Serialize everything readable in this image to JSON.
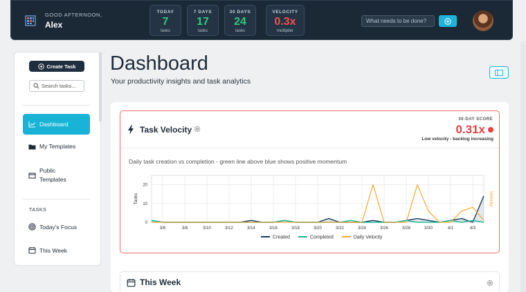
{
  "header": {
    "greeting": "GOOD AFTERNOON,",
    "user_name": "Alex",
    "stats": [
      {
        "label": "TODAY",
        "value": "7",
        "sub": "tasks",
        "color": "#2ec97c"
      },
      {
        "label": "7 DAYS",
        "value": "17",
        "sub": "tasks",
        "color": "#2ec97c"
      },
      {
        "label": "30 DAYS",
        "value": "24",
        "sub": "tasks",
        "color": "#2ec97c"
      },
      {
        "label": "VELOCITY",
        "value": "0.3x",
        "sub": "multiplier",
        "color": "#f05050"
      }
    ],
    "task_input_placeholder": "What needs to be done?",
    "add_icon": "plus-circle-icon"
  },
  "sidebar": {
    "create_label": "Create Task",
    "search_placeholder": "Search tasks...",
    "nav": [
      {
        "label": "Dashboard",
        "icon": "chart-line-icon",
        "active": true
      },
      {
        "label": "My Templates",
        "icon": "folder-icon"
      },
      {
        "label": "Public Templates",
        "icon": "box-icon"
      }
    ],
    "section": "TASKS",
    "tasks_nav": [
      {
        "label": "Today's Focus",
        "icon": "target-icon"
      },
      {
        "label": "This Week",
        "icon": "calendar-icon"
      }
    ]
  },
  "main": {
    "title": "Dashboard",
    "subtitle": "Your productivity insights and task analytics",
    "velocity": {
      "title": "Task Velocity",
      "score_label": "30-DAY SCORE",
      "score_value": "0.31x",
      "score_note": "Low velocity - backlog increasing",
      "description": "Daily task creation vs completion - green line above blue shows positive momentum"
    },
    "week": {
      "title": "This Week"
    }
  },
  "chart_data": {
    "type": "line",
    "x": [
      "3/5",
      "3/6",
      "3/7",
      "3/8",
      "3/9",
      "3/10",
      "3/11",
      "3/12",
      "3/13",
      "3/14",
      "3/15",
      "3/16",
      "3/17",
      "3/18",
      "3/19",
      "3/20",
      "3/21",
      "3/22",
      "3/23",
      "3/24",
      "3/25",
      "3/26",
      "3/27",
      "3/28",
      "3/29",
      "3/30",
      "3/31",
      "4/1",
      "4/2",
      "4/3",
      "4/4"
    ],
    "x_tick_labels": [
      "3/6",
      "3/8",
      "3/10",
      "3/12",
      "3/14",
      "3/16",
      "3/18",
      "3/20",
      "3/22",
      "3/24",
      "3/26",
      "3/28",
      "3/30",
      "4/1",
      "4/3"
    ],
    "ylabel": "Tasks",
    "y2label": "Velocity",
    "ylim": [
      0,
      25
    ],
    "y_ticks": [
      0,
      10,
      20
    ],
    "series": [
      {
        "name": "Created",
        "color": "#1e3a5f",
        "values": [
          1,
          0,
          0,
          0,
          0,
          0,
          0,
          0,
          0,
          1,
          0,
          0,
          1,
          0,
          0,
          0,
          2,
          0,
          0,
          0,
          1,
          0,
          0,
          1,
          2,
          1,
          0,
          1,
          2,
          0,
          14
        ]
      },
      {
        "name": "Completed",
        "color": "#17b890",
        "values": [
          1,
          0,
          0,
          0,
          0,
          0,
          0,
          0,
          0,
          0,
          0,
          0,
          1,
          0,
          0,
          0,
          0,
          0,
          1,
          0,
          0,
          0,
          0,
          1,
          0,
          0,
          0,
          1,
          0,
          1,
          0
        ]
      },
      {
        "name": "Daily Velocity",
        "color": "#f0a830",
        "values": [
          0,
          0,
          0,
          0,
          0,
          0,
          0,
          0,
          0,
          0,
          0,
          0,
          0,
          0,
          0,
          0,
          0,
          0,
          0,
          0,
          20,
          0,
          0,
          0,
          20,
          6,
          0,
          0,
          6,
          8,
          1
        ]
      }
    ]
  }
}
